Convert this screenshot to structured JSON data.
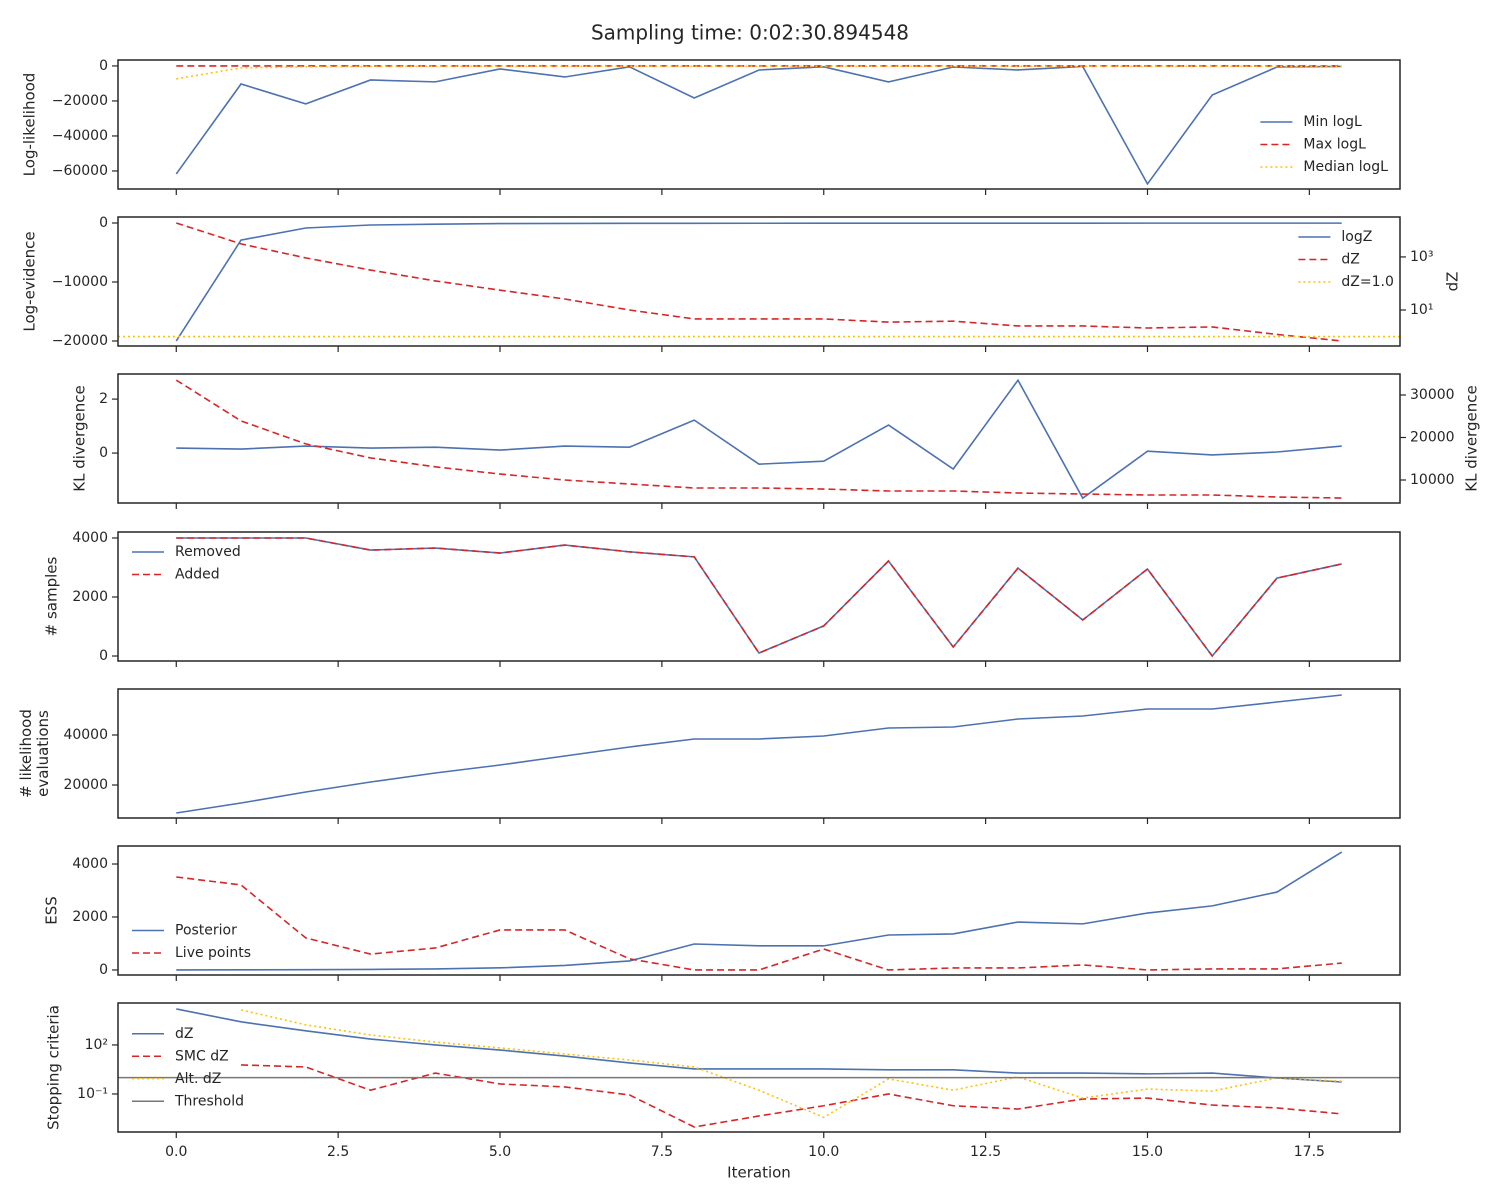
{
  "title": "Sampling time: 0:02:30.894548",
  "chart_data": [
    {
      "type": "line",
      "ylabel": [
        "Log-likelihood"
      ],
      "legend": "lower right",
      "x": [
        0,
        1,
        2,
        3,
        4,
        5,
        6,
        7,
        8,
        9,
        10,
        11,
        12,
        13,
        14,
        15,
        16,
        17,
        18
      ],
      "xlim": [
        -0.9,
        18.9
      ],
      "xticks": [
        {
          "value": 0,
          "label": "0.0"
        },
        {
          "value": 2.5,
          "label": "2.5"
        },
        {
          "value": 5,
          "label": "5.0"
        },
        {
          "value": 7.5,
          "label": "7.5"
        },
        {
          "value": 10,
          "label": "10.0"
        },
        {
          "value": 12.5,
          "label": "12.5"
        },
        {
          "value": 15,
          "label": "15.0"
        },
        {
          "value": 17.5,
          "label": "17.5"
        }
      ],
      "ylim": [
        -70300,
        3400
      ],
      "yticks": [
        0,
        {
          "value": -20000,
          "label": "−20000"
        },
        {
          "value": -40000,
          "label": "−40000"
        },
        {
          "value": -60000,
          "label": "−60000"
        }
      ],
      "series": [
        {
          "name": "Min logL",
          "color": "#4c72b0",
          "linestyle": "solid",
          "values": [
            -61700,
            -10300,
            -21700,
            -8000,
            -9100,
            -1700,
            -6300,
            -500,
            -18300,
            -2300,
            -500,
            -9100,
            -600,
            -2300,
            -300,
            -67400,
            -16600,
            -600,
            -300
          ]
        },
        {
          "name": "Max logL",
          "color": "#d62728",
          "linestyle": "dashed",
          "values": [
            0,
            0,
            0,
            0,
            0,
            0,
            0,
            0,
            0,
            0,
            0,
            0,
            0,
            0,
            0,
            0,
            0,
            0,
            0
          ]
        },
        {
          "name": "Median logL",
          "color": "#ffc107",
          "linestyle": "dotted",
          "values": [
            -7400,
            -1100,
            -500,
            -300,
            -200,
            -200,
            -200,
            -200,
            -200,
            -200,
            -200,
            -200,
            -200,
            -200,
            -200,
            -200,
            -200,
            -200,
            -200
          ]
        }
      ]
    },
    {
      "type": "line",
      "ylabel": [
        "Log-evidence"
      ],
      "y2label": "dZ",
      "legend": "upper right",
      "x": [
        0,
        1,
        2,
        3,
        4,
        5,
        6,
        7,
        8,
        9,
        10,
        11,
        12,
        13,
        14,
        15,
        16,
        17,
        18
      ],
      "xlim": [
        -0.9,
        18.9
      ],
      "xticks": [
        {
          "value": 0,
          "label": "0.0"
        },
        {
          "value": 2.5,
          "label": "2.5"
        },
        {
          "value": 5,
          "label": "5.0"
        },
        {
          "value": 7.5,
          "label": "7.5"
        },
        {
          "value": 10,
          "label": "10.0"
        },
        {
          "value": 12.5,
          "label": "12.5"
        },
        {
          "value": 15,
          "label": "15.0"
        },
        {
          "value": 17.5,
          "label": "17.5"
        }
      ],
      "ylim": [
        -20850,
        1017
      ],
      "yticks": [
        0,
        {
          "value": -10000,
          "label": "−10000"
        },
        {
          "value": -20000,
          "label": "−20000"
        }
      ],
      "y2lim": [
        0.44,
        32000
      ],
      "y2log": true,
      "y2ticks": [
        {
          "value": 1000,
          "label": "10³"
        },
        {
          "value": 10,
          "label": "10¹"
        }
      ],
      "series": [
        {
          "name": "logZ",
          "color": "#4c72b0",
          "linestyle": "solid",
          "values": [
            -20000,
            -2900,
            -850,
            -340,
            -200,
            -100,
            -80,
            -60,
            -50,
            -40,
            -35,
            -30,
            -30,
            -25,
            -25,
            -20,
            -20,
            -20,
            -20
          ]
        },
        {
          "name": "dZ",
          "color": "#d62728",
          "linestyle": "dashed",
          "axis": "y2",
          "values": [
            19000,
            3100,
            920,
            320,
            125,
            56,
            26,
            10,
            4.6,
            4.6,
            4.6,
            3.5,
            3.8,
            2.5,
            2.5,
            2.1,
            2.3,
            1.2,
            0.68
          ]
        },
        {
          "name": "dZ=1.0",
          "color": "#ffc107",
          "linestyle": "dotted",
          "axis": "y2",
          "value": 1
        }
      ]
    },
    {
      "type": "line",
      "ylabel": [
        "KL divergence"
      ],
      "y2label": "KL divergence",
      "x": [
        0,
        1,
        2,
        3,
        4,
        5,
        6,
        7,
        8,
        9,
        10,
        11,
        12,
        13,
        14,
        15,
        16,
        17,
        18
      ],
      "xlim": [
        -0.9,
        18.9
      ],
      "xticks": [
        {
          "value": 0,
          "label": "0.0"
        },
        {
          "value": 2.5,
          "label": "2.5"
        },
        {
          "value": 5,
          "label": "5.0"
        },
        {
          "value": 7.5,
          "label": "7.5"
        },
        {
          "value": 10,
          "label": "10.0"
        },
        {
          "value": 12.5,
          "label": "12.5"
        },
        {
          "value": 15,
          "label": "15.0"
        },
        {
          "value": 17.5,
          "label": "17.5"
        }
      ],
      "ylim": [
        -1.85,
        2.93
      ],
      "yticks": [
        2,
        0
      ],
      "y2lim": [
        4590,
        34940
      ],
      "y2ticks": [
        30000,
        20000,
        10000
      ],
      "series": [
        {
          "color": "#4c72b0",
          "linestyle": "solid",
          "values": [
            0.185,
            0.15,
            0.26,
            0.185,
            0.22,
            0.11,
            0.26,
            0.22,
            1.22,
            -0.41,
            -0.3,
            1.04,
            -0.59,
            2.7,
            -1.67,
            0.07,
            -0.07,
            0.04,
            0.26
          ]
        },
        {
          "color": "#d62728",
          "linestyle": "dashed",
          "axis": "y2",
          "values": [
            33500,
            23900,
            18500,
            15200,
            13100,
            11400,
            10000,
            9060,
            8120,
            8120,
            7880,
            7410,
            7410,
            6940,
            6700,
            6470,
            6470,
            6000,
            5760
          ]
        }
      ]
    },
    {
      "type": "line",
      "ylabel": [
        "# samples"
      ],
      "legend": "upper left",
      "x": [
        0,
        1,
        2,
        3,
        4,
        5,
        6,
        7,
        8,
        9,
        10,
        11,
        12,
        13,
        14,
        15,
        16,
        17,
        18
      ],
      "xlim": [
        -0.9,
        18.9
      ],
      "xticks": [
        {
          "value": 0,
          "label": "0.0"
        },
        {
          "value": 2.5,
          "label": "2.5"
        },
        {
          "value": 5,
          "label": "5.0"
        },
        {
          "value": 7.5,
          "label": "7.5"
        },
        {
          "value": 10,
          "label": "10.0"
        },
        {
          "value": 12.5,
          "label": "12.5"
        },
        {
          "value": 15,
          "label": "15.0"
        },
        {
          "value": 17.5,
          "label": "17.5"
        }
      ],
      "ylim": [
        -169,
        4203
      ],
      "yticks": [
        4000,
        2000,
        0
      ],
      "series": [
        {
          "name": "Removed",
          "color": "#4c72b0",
          "linestyle": "solid",
          "values": [
            4000,
            4000,
            4000,
            3590,
            3660,
            3490,
            3760,
            3530,
            3360,
            100,
            1020,
            3220,
            305,
            2980,
            1220,
            2950,
            0,
            2640,
            3120
          ]
        },
        {
          "name": "Added",
          "color": "#d62728",
          "linestyle": "dashed",
          "values": [
            4000,
            4000,
            4000,
            3590,
            3660,
            3490,
            3760,
            3530,
            3360,
            100,
            1020,
            3220,
            305,
            2980,
            1220,
            2950,
            0,
            2640,
            3120
          ]
        }
      ]
    },
    {
      "type": "line",
      "ylabel": [
        "# likelihood",
        "evaluations"
      ],
      "x": [
        0,
        1,
        2,
        3,
        4,
        5,
        6,
        7,
        8,
        9,
        10,
        11,
        12,
        13,
        14,
        15,
        16,
        17,
        18
      ],
      "xlim": [
        -0.9,
        18.9
      ],
      "xticks": [
        {
          "value": 0,
          "label": "0.0"
        },
        {
          "value": 2.5,
          "label": "2.5"
        },
        {
          "value": 5,
          "label": "5.0"
        },
        {
          "value": 7.5,
          "label": "7.5"
        },
        {
          "value": 10,
          "label": "10.0"
        },
        {
          "value": 12.5,
          "label": "12.5"
        },
        {
          "value": 15,
          "label": "15.0"
        },
        {
          "value": 17.5,
          "label": "17.5"
        }
      ],
      "ylim": [
        6800,
        58400
      ],
      "yticks": [
        40000,
        20000
      ],
      "series": [
        {
          "color": "#4c72b0",
          "linestyle": "solid",
          "values": [
            8800,
            12800,
            17200,
            21200,
            24800,
            28000,
            31600,
            35200,
            38400,
            38400,
            39600,
            42800,
            43200,
            46400,
            47600,
            50400,
            50400,
            53200,
            56000
          ]
        }
      ]
    },
    {
      "type": "line",
      "ylabel": [
        "ESS"
      ],
      "legend": "lower left",
      "x": [
        0,
        1,
        2,
        3,
        4,
        5,
        6,
        7,
        8,
        9,
        10,
        11,
        12,
        13,
        14,
        15,
        16,
        17,
        18
      ],
      "xlim": [
        -0.9,
        18.9
      ],
      "xticks": [
        {
          "value": 0,
          "label": "0.0"
        },
        {
          "value": 2.5,
          "label": "2.5"
        },
        {
          "value": 5,
          "label": "5.0"
        },
        {
          "value": 7.5,
          "label": "7.5"
        },
        {
          "value": 10,
          "label": "10.0"
        },
        {
          "value": 12.5,
          "label": "12.5"
        },
        {
          "value": 15,
          "label": "15.0"
        },
        {
          "value": 17.5,
          "label": "17.5"
        }
      ],
      "ylim": [
        -190,
        4680
      ],
      "yticks": [
        4000,
        2000,
        0
      ],
      "series": [
        {
          "name": "Posterior",
          "color": "#4c72b0",
          "linestyle": "solid",
          "values": [
            0,
            5,
            10,
            20,
            40,
            80,
            170,
            340,
            980,
            910,
            910,
            1320,
            1360,
            1810,
            1740,
            2150,
            2420,
            2940,
            4450
          ]
        },
        {
          "name": "Live points",
          "color": "#d62728",
          "linestyle": "dashed",
          "values": [
            3510,
            3210,
            1210,
            600,
            830,
            1510,
            1510,
            420,
            0,
            0,
            790,
            0,
            75,
            75,
            190,
            0,
            40,
            40,
            260
          ]
        }
      ]
    },
    {
      "type": "line",
      "ylabel": [
        "Stopping criteria"
      ],
      "xlabel": "Iteration",
      "legend": "center left",
      "ylog": true,
      "x": [
        0,
        1,
        2,
        3,
        4,
        5,
        6,
        7,
        8,
        9,
        10,
        11,
        12,
        13,
        14,
        15,
        16,
        17,
        18
      ],
      "xlim": [
        -0.9,
        18.9
      ],
      "xticks": [
        {
          "value": 0,
          "label": "0.0"
        },
        {
          "value": 2.5,
          "label": "2.5"
        },
        {
          "value": 5,
          "label": "5.0"
        },
        {
          "value": 7.5,
          "label": "7.5"
        },
        {
          "value": 10,
          "label": "10.0"
        },
        {
          "value": 12.5,
          "label": "12.5"
        },
        {
          "value": 15,
          "label": "15.0"
        },
        {
          "value": 17.5,
          "label": "17.5"
        }
      ],
      "ylim": [
        0.00047,
        37000
      ],
      "yticks": [
        {
          "value": 100,
          "label": "10²"
        },
        {
          "value": 0.1,
          "label": "10⁻¹"
        }
      ],
      "series": [
        {
          "name": "dZ",
          "color": "#4c72b0",
          "linestyle": "solid",
          "values": [
            16000,
            2600,
            730,
            230,
            100,
            49,
            21,
            7.9,
            3.4,
            3.4,
            3.4,
            3.0,
            3.0,
            1.9,
            1.9,
            1.7,
            1.9,
            0.95,
            0.54
          ]
        },
        {
          "name": "SMC dZ",
          "color": "#d62728",
          "linestyle": "dashed",
          "values": [
            null,
            6.0,
            4.5,
            0.17,
            1.9,
            0.41,
            0.27,
            0.087,
            0.00095,
            0.0045,
            0.019,
            0.1,
            0.019,
            0.012,
            0.049,
            0.056,
            0.021,
            0.014,
            0.006
          ]
        },
        {
          "name": "Alt. dZ",
          "color": "#ffc107",
          "linestyle": "dotted",
          "values": [
            null,
            14000,
            1700,
            410,
            150,
            66,
            28,
            12,
            4.5,
            0.17,
            0.0037,
            0.83,
            0.17,
            1.1,
            0.056,
            0.2,
            0.15,
            0.95,
            0.6
          ]
        },
        {
          "name": "Threshold",
          "color": "#777777",
          "linestyle": "solid",
          "value": 1
        }
      ]
    }
  ]
}
